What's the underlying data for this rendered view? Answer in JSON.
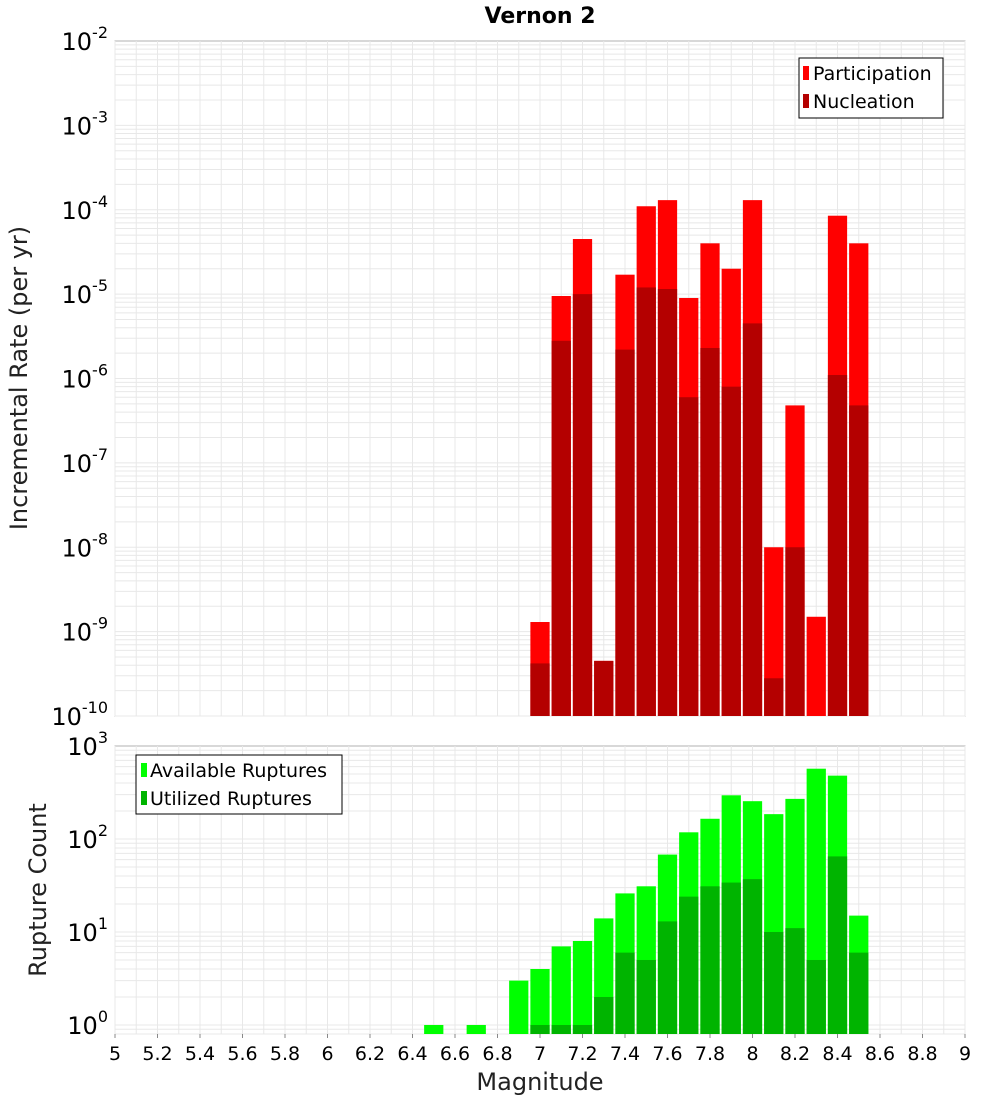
{
  "chart_data": [
    {
      "type": "bar",
      "title": "Vernon 2",
      "xlabel": "",
      "ylabel": "Incremental Rate (per yr)",
      "yscale": "log",
      "ylim": [
        1e-10,
        0.01
      ],
      "xlim": [
        5,
        9
      ],
      "y_ticks": [
        {
          "base": "10",
          "exp": "-10"
        },
        {
          "base": "10",
          "exp": "-9"
        },
        {
          "base": "10",
          "exp": "-8"
        },
        {
          "base": "10",
          "exp": "-7"
        },
        {
          "base": "10",
          "exp": "-6"
        },
        {
          "base": "10",
          "exp": "-5"
        },
        {
          "base": "10",
          "exp": "-4"
        },
        {
          "base": "10",
          "exp": "-3"
        },
        {
          "base": "10",
          "exp": "-2"
        }
      ],
      "grid": true,
      "legend_position": "top-right",
      "x": [
        7.0,
        7.1,
        7.2,
        7.3,
        7.4,
        7.5,
        7.6,
        7.7,
        7.8,
        7.9,
        8.0,
        8.1,
        8.2,
        8.3,
        8.4,
        8.5
      ],
      "series": [
        {
          "name": "Participation",
          "color": "#ff0000",
          "values": [
            1.3e-09,
            9.5e-06,
            4.5e-05,
            4.5e-10,
            1.7e-05,
            0.00011,
            0.00013,
            9e-06,
            4e-05,
            2e-05,
            0.00013,
            1e-08,
            4.8e-07,
            1.5e-09,
            8.5e-05,
            4e-05
          ]
        },
        {
          "name": "Nucleation",
          "color": "#b40000",
          "values": [
            4.2e-10,
            2.8e-06,
            1e-05,
            4.5e-10,
            2.2e-06,
            1.2e-05,
            1.15e-05,
            6e-07,
            2.3e-06,
            8e-07,
            4.5e-06,
            2.8e-10,
            1e-08,
            0,
            1.1e-06,
            4.8e-07
          ]
        }
      ]
    },
    {
      "type": "bar",
      "title": "",
      "xlabel": "Magnitude",
      "ylabel": "Rupture Count",
      "yscale": "log",
      "ylim": [
        0.8,
        1000
      ],
      "xlim": [
        5,
        9
      ],
      "y_ticks": [
        {
          "base": "10",
          "exp": "0",
          "value": 1
        },
        {
          "base": "10",
          "exp": "1",
          "value": 10
        },
        {
          "base": "10",
          "exp": "2",
          "value": 100
        },
        {
          "base": "10",
          "exp": "3",
          "value": 1000
        }
      ],
      "x_ticks": [
        "5",
        "5.2",
        "5.4",
        "5.6",
        "5.8",
        "6",
        "6.2",
        "6.4",
        "6.6",
        "6.8",
        "7",
        "7.2",
        "7.4",
        "7.6",
        "7.8",
        "8",
        "8.2",
        "8.4",
        "8.6",
        "8.8",
        "9"
      ],
      "grid": true,
      "legend_position": "top-left",
      "x": [
        6.5,
        6.6,
        6.7,
        6.8,
        6.9,
        7.0,
        7.1,
        7.2,
        7.3,
        7.4,
        7.5,
        7.6,
        7.7,
        7.8,
        7.9,
        8.0,
        8.1,
        8.2,
        8.3,
        8.4,
        8.5
      ],
      "series": [
        {
          "name": "Available Ruptures",
          "color": "#00ff00",
          "values": [
            1,
            0,
            1,
            0,
            3,
            4,
            7,
            8,
            14,
            26,
            31,
            68,
            118,
            165,
            295,
            255,
            185,
            270,
            570,
            480,
            15
          ]
        },
        {
          "name": "Utilized Ruptures",
          "color": "#00b400",
          "values": [
            0,
            0,
            0,
            0,
            0,
            1,
            1,
            1,
            2,
            6,
            5,
            13,
            24,
            31,
            34,
            37,
            10,
            11,
            5,
            65,
            6
          ]
        }
      ]
    }
  ]
}
